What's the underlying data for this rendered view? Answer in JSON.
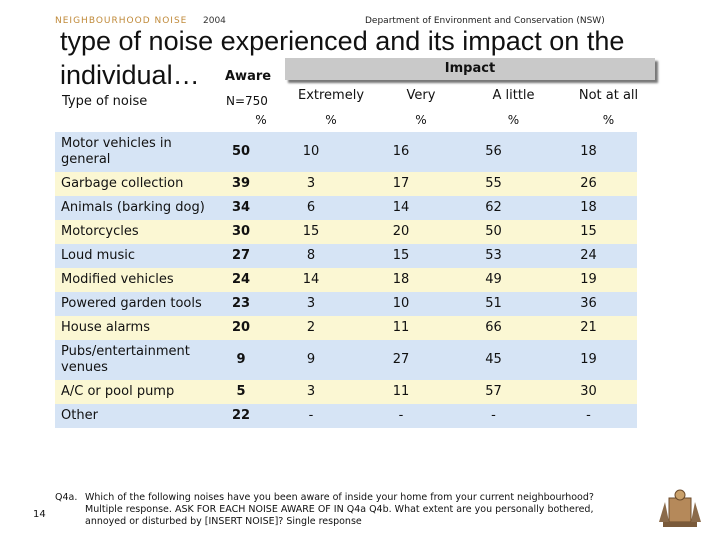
{
  "header": {
    "brand": "NEIGHBOURHOOD NOISE",
    "year": "2004",
    "department": "Department of Environment and Conservation (NSW)"
  },
  "title": "type of noise experienced and its impact on the individual…",
  "table": {
    "col_type": "Type of noise",
    "col_aware": "Aware",
    "base": "N=750",
    "impact": "Impact",
    "impact_cols": [
      "Extremely",
      "Very",
      "A little",
      "Not at all"
    ],
    "units": [
      "%",
      "%",
      "%",
      "%",
      "%"
    ],
    "rows": [
      [
        "Motor vehicles in general",
        50,
        10,
        16,
        56,
        18
      ],
      [
        "Garbage collection",
        39,
        3,
        17,
        55,
        26
      ],
      [
        "Animals (barking dog)",
        34,
        6,
        14,
        62,
        18
      ],
      [
        "Motorcycles",
        30,
        15,
        20,
        50,
        15
      ],
      [
        "Loud music",
        27,
        8,
        15,
        53,
        24
      ],
      [
        "Modified vehicles",
        24,
        14,
        18,
        49,
        19
      ],
      [
        "Powered garden tools",
        23,
        3,
        10,
        51,
        36
      ],
      [
        "House alarms",
        20,
        2,
        11,
        66,
        21
      ],
      [
        "Pubs/entertainment venues",
        9,
        9,
        27,
        45,
        19
      ],
      [
        "A/C or pool pump",
        5,
        3,
        11,
        57,
        30
      ],
      [
        "Other",
        22,
        "-",
        "-",
        "-",
        "-"
      ]
    ]
  },
  "footnote": {
    "label": "Q4a.",
    "text": "Which of the following noises have you been aware of inside your home from your current neighbourhood? Multiple response. ASK FOR EACH NOISE AWARE OF IN Q4a Q4b. What extent are you personally bothered, annoyed or disturbed by [INSERT NOISE]? Single response"
  },
  "page_number": "14"
}
